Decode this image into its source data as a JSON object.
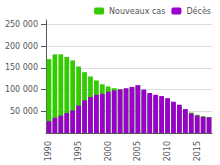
{
  "chart_data": {
    "type": "bar",
    "categories": [
      "1990",
      null,
      null,
      null,
      null,
      "1995",
      null,
      null,
      null,
      null,
      "2000",
      null,
      null,
      null,
      null,
      "2005",
      null,
      null,
      null,
      null,
      "2010",
      null,
      null,
      null,
      null,
      "2015",
      null,
      null
    ],
    "series": [
      {
        "name": "Nouveaux cas",
        "color": "#33CC00",
        "values": [
          170000,
          181000,
          181000,
          175000,
          167000,
          153000,
          140000,
          130000,
          121000,
          112000,
          107000,
          103000,
          101000,
          100000,
          105000,
          109000,
          97000,
          88000,
          84000,
          82000,
          79000,
          68000,
          61000,
          54000,
          47000,
          42000,
          39000,
          37000
        ]
      },
      {
        "name": "Décès",
        "color": "#9900CC",
        "values": [
          27000,
          35000,
          40000,
          46000,
          52000,
          63000,
          75000,
          83000,
          88000,
          90000,
          95000,
          98000,
          100000,
          103000,
          106000,
          110000,
          100000,
          92000,
          88000,
          85000,
          80000,
          72000,
          65000,
          55000,
          45000,
          40000,
          37000,
          36000
        ]
      }
    ],
    "ylim": [
      0,
      260000
    ],
    "yticks": [
      {
        "value": 50000,
        "label": "50 000"
      },
      {
        "value": 100000,
        "label": "100 000"
      },
      {
        "value": 150000,
        "label": "150 000"
      },
      {
        "value": 200000,
        "label": "200 000"
      },
      {
        "value": 250000,
        "label": "250 000"
      }
    ],
    "grid": true,
    "legend": "upper right"
  }
}
